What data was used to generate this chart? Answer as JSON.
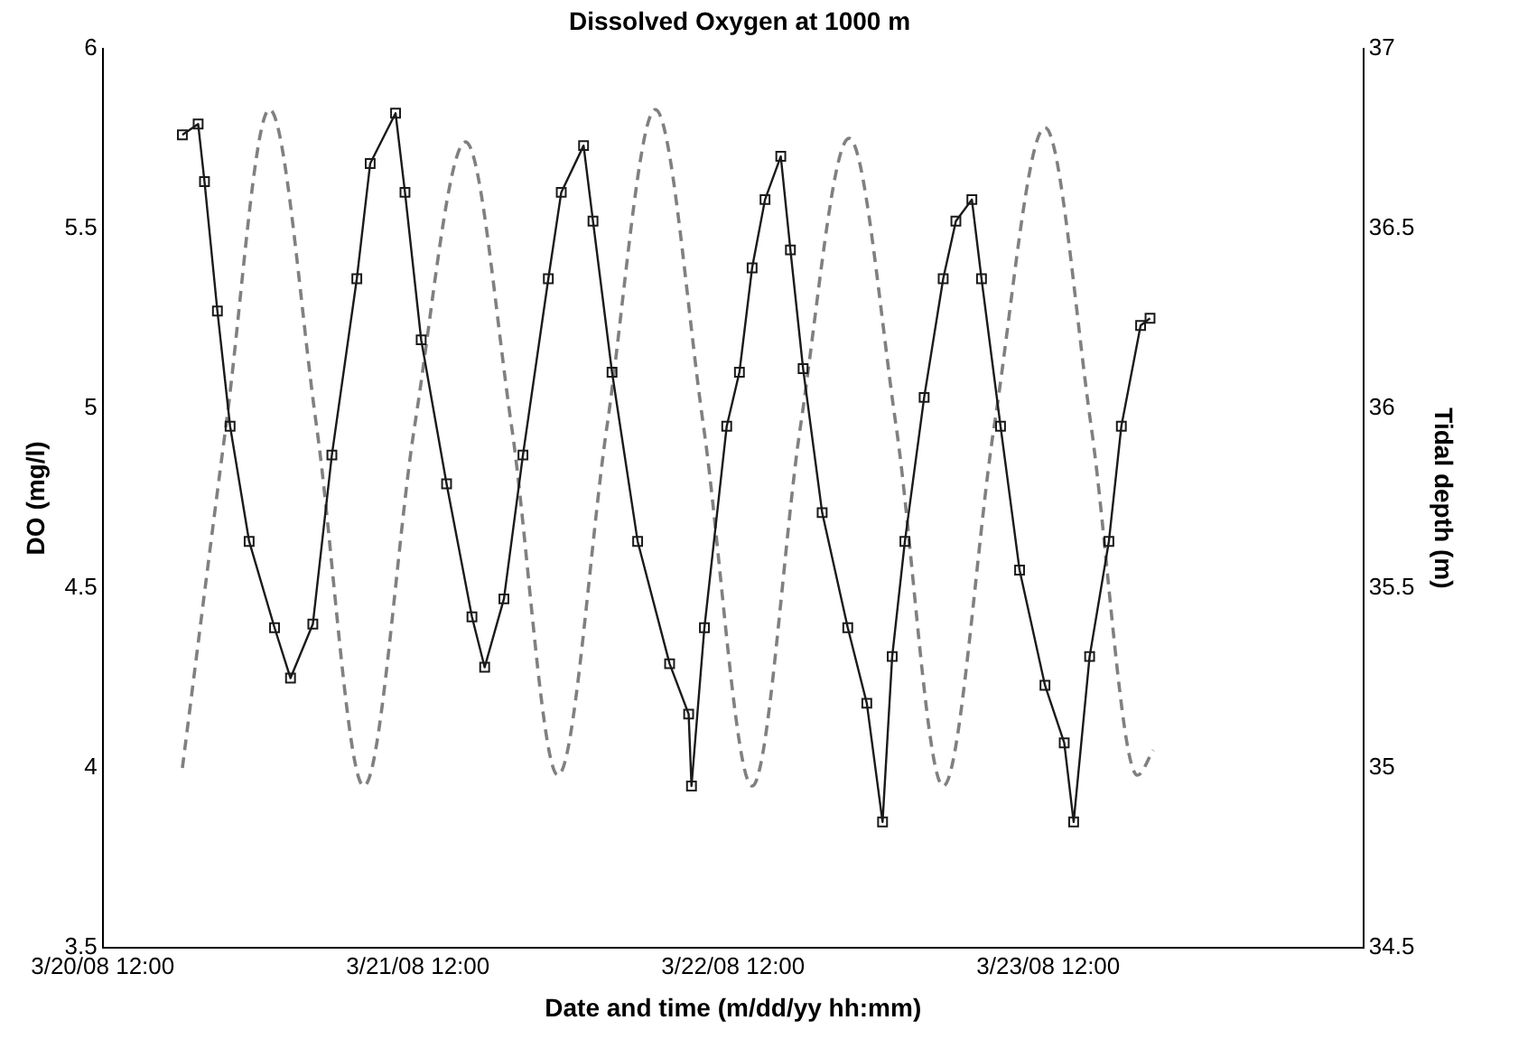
{
  "chart_data": {
    "type": "line",
    "title": "Dissolved Oxygen at 1000 m",
    "xlabel": "Date and time (m/dd/yy hh:mm)",
    "ylabel": "DO (mg/l)",
    "y2label": "Tidal depth (m)",
    "xlim": [
      "--03-20T12:00",
      "--03-24T12:00"
    ],
    "xticks": [
      {
        "value": "--03-20T12:00",
        "label": "3/20/08 12:00"
      },
      {
        "value": "--03-21T12:00",
        "label": "3/21/08 12:00"
      },
      {
        "value": "--03-22T12:00",
        "label": "3/22/08 12:00"
      },
      {
        "value": "--03-23T12:00",
        "label": "3/23/08 12:00"
      }
    ],
    "ylim": [
      3.5,
      6
    ],
    "yticks": [
      3.5,
      4,
      4.5,
      5,
      5.5,
      6
    ],
    "y2lim": [
      34.5,
      37
    ],
    "y2ticks": [
      34.5,
      35,
      35.5,
      36,
      36.5,
      37
    ],
    "grid": false,
    "legend": false,
    "series": [
      {
        "color": "#1a1a1a",
        "marker": "square",
        "line_style": "solid",
        "x": [
          "--03-20T18:04",
          "--03-20T19:16",
          "--03-20T19:45",
          "--03-20T20:44",
          "--03-20T21:42",
          "--03-20T23:09",
          "--03-21T01:05",
          "--03-21T02:18",
          "--03-21T04:00",
          "--03-21T05:27",
          "--03-21T07:21",
          "--03-21T08:22",
          "--03-21T10:18",
          "--03-21T11:01",
          "--03-21T12:15",
          "--03-21T14:11",
          "--03-21T16:07",
          "--03-21T17:05",
          "--03-21T18:33",
          "--03-21T20:00",
          "--03-21T21:56",
          "--03-21T22:55",
          "--03-22T00:37",
          "--03-22T01:20",
          "--03-22T02:47",
          "--03-22T04:44",
          "--03-22T07:10",
          "--03-22T08:37",
          "--03-22T08:50",
          "--03-22T09:49",
          "--03-22T11:31",
          "--03-22T12:29",
          "--03-22T13:27",
          "--03-22T14:26",
          "--03-22T15:38",
          "--03-22T16:22",
          "--03-22T17:20",
          "--03-22T18:47",
          "--03-22T20:44",
          "--03-22T22:11",
          "--03-22T23:23",
          "--03-23T00:07",
          "--03-23T01:05",
          "--03-23T02:33",
          "--03-23T04:00",
          "--03-23T04:58",
          "--03-23T06:11",
          "--03-23T06:55",
          "--03-23T08:22",
          "--03-23T09:49",
          "--03-23T11:45",
          "--03-23T13:13",
          "--03-23T13:56",
          "--03-23T15:09",
          "--03-23T16:37",
          "--03-23T17:34",
          "--03-23T19:02",
          "--03-23T19:45"
        ],
        "values": [
          5.76,
          5.79,
          5.63,
          5.27,
          4.95,
          4.63,
          4.39,
          4.25,
          4.4,
          4.87,
          5.36,
          5.68,
          5.82,
          5.6,
          5.19,
          4.79,
          4.42,
          4.28,
          4.47,
          4.87,
          5.36,
          5.6,
          5.73,
          5.52,
          5.1,
          4.63,
          4.29,
          4.15,
          3.95,
          4.39,
          4.95,
          5.1,
          5.39,
          5.58,
          5.7,
          5.44,
          5.11,
          4.71,
          4.39,
          4.18,
          3.85,
          4.31,
          4.63,
          5.03,
          5.36,
          5.52,
          5.58,
          5.36,
          4.95,
          4.55,
          4.23,
          4.07,
          3.85,
          4.31,
          4.63,
          4.95,
          5.23,
          5.25
        ]
      },
      {
        "color": "#808080",
        "marker": "none",
        "line_style": "dashed",
        "axis": "y2",
        "x": [
          "--03-20T18:04",
          "--03-20T21:23",
          "--03-21T00:42",
          "--03-21T04:17",
          "--03-21T07:53",
          "--03-21T11:45",
          "--03-21T15:38",
          "--03-21T19:08",
          "--03-21T22:40",
          "--03-22T02:24",
          "--03-22T06:05",
          "--03-22T09:45",
          "--03-22T13:27",
          "--03-22T17:08",
          "--03-22T20:50",
          "--03-23T00:25",
          "--03-23T04:00",
          "--03-23T07:53",
          "--03-23T11:45",
          "--03-23T15:16",
          "--03-23T18:47",
          "--03-23T20:00"
        ],
        "values": [
          35.0,
          35.95,
          36.83,
          35.95,
          34.95,
          35.95,
          36.74,
          35.95,
          34.98,
          35.95,
          36.83,
          35.95,
          34.95,
          35.95,
          36.75,
          35.95,
          34.95,
          35.95,
          36.78,
          35.95,
          34.98,
          35.05
        ]
      }
    ]
  }
}
